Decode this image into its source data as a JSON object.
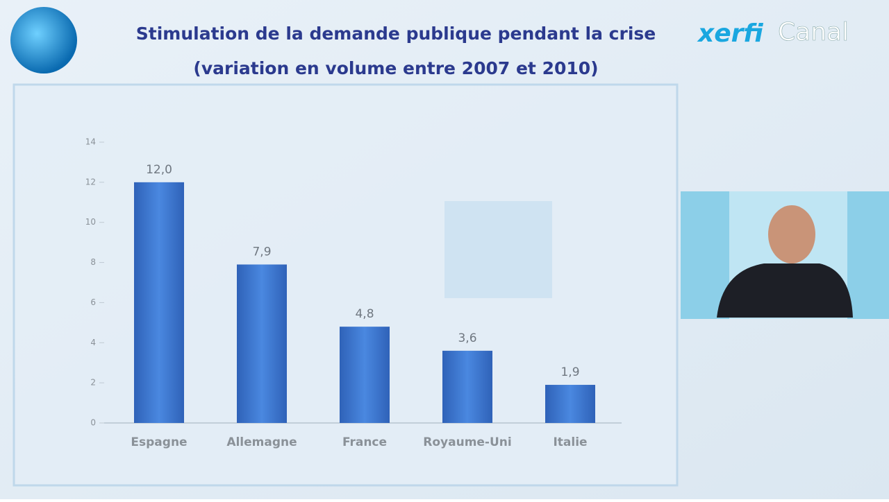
{
  "chart_data": {
    "type": "bar",
    "title": "Stimulation de la demande publique pendant la crise",
    "subtitle": "(variation en volume entre 2007 et 2010)",
    "categories": [
      "Espagne",
      "Allemagne",
      "France",
      "Royaume-Uni",
      "Italie"
    ],
    "values": [
      12.0,
      7.9,
      4.8,
      3.6,
      1.9
    ],
    "value_labels": [
      "12,0",
      "7,9",
      "4,8",
      "3,6",
      "1,9"
    ],
    "color": "#3b76d2",
    "ylim": [
      0,
      14
    ],
    "yticks": [
      0,
      2,
      4,
      6,
      8,
      10,
      12,
      14
    ],
    "grid": false
  },
  "logo": {
    "brand": "xerfi",
    "channel": "Canal"
  }
}
